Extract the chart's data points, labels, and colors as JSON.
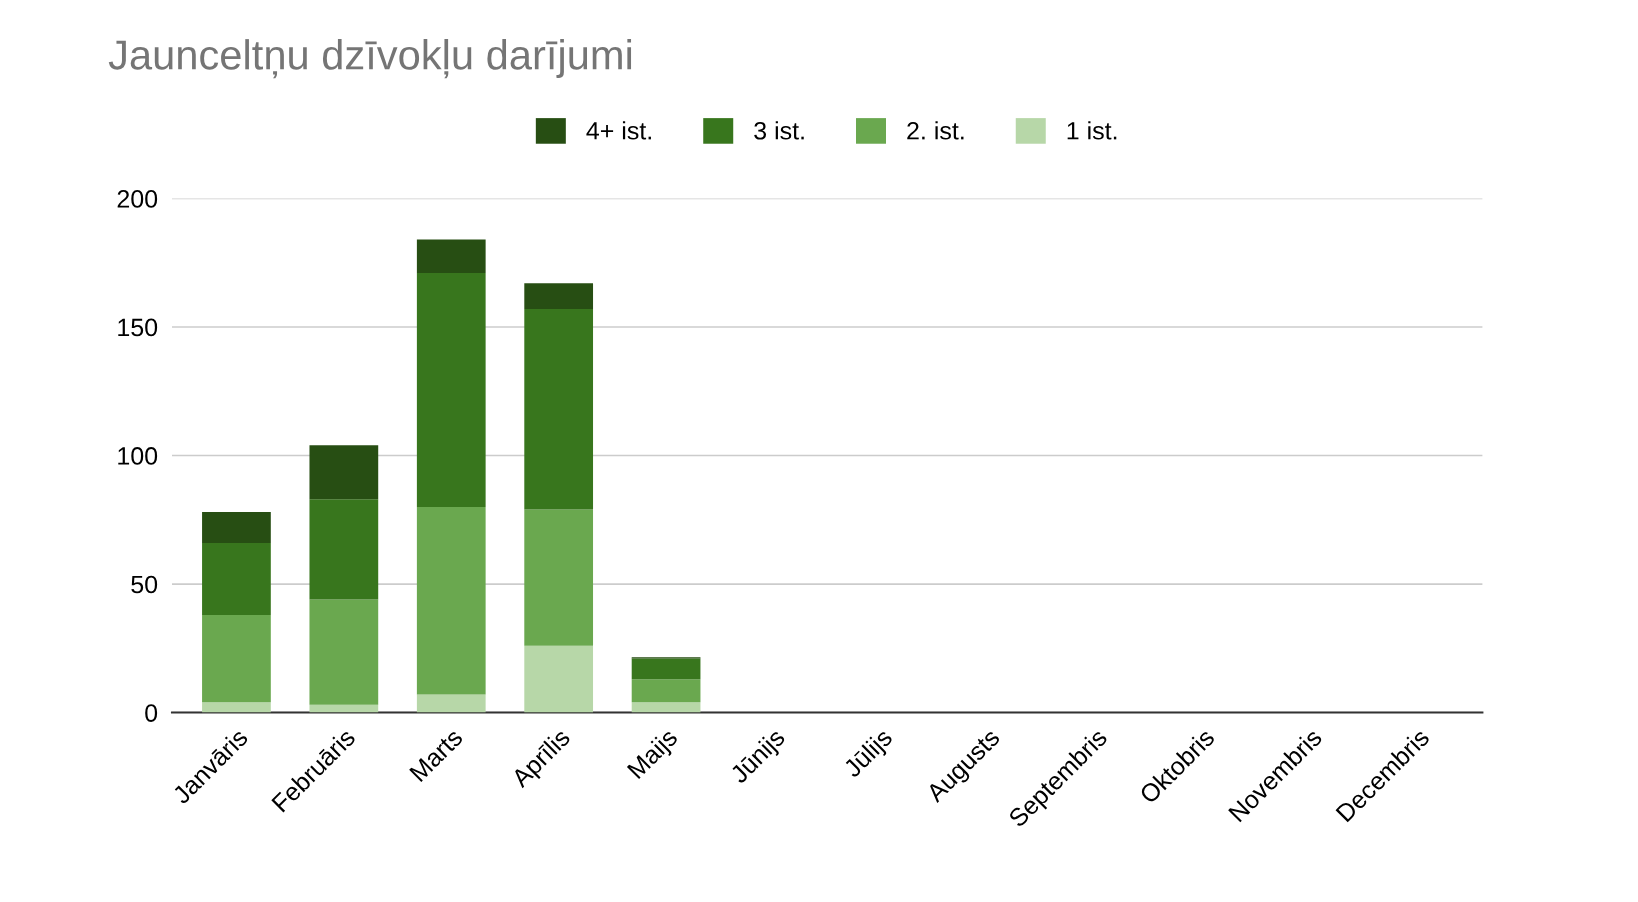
{
  "chart_data": {
    "type": "bar",
    "title": "Jaunceltņu dzīvokļu darījumi",
    "stacked": true,
    "grid": "y",
    "legend": "top",
    "categories": [
      "Janvāris",
      "Februāris",
      "Marts",
      "Aprīlis",
      "Maijs",
      "Jūnijs",
      "Jūlijs",
      "Augusts",
      "Septembris",
      "Oktobris",
      "Novembris",
      "Decembris"
    ],
    "ylim": [
      0,
      200
    ],
    "yticks": [
      0,
      50,
      100,
      150,
      200
    ],
    "series": [
      {
        "name": "1 ist.",
        "color": "#b7d7a8",
        "values": [
          4,
          3,
          7,
          26,
          4,
          null,
          null,
          null,
          null,
          null,
          null,
          null
        ]
      },
      {
        "name": "2. ist.",
        "color": "#6aa84f",
        "values": [
          34,
          41,
          73,
          53,
          9,
          null,
          null,
          null,
          null,
          null,
          null,
          null
        ]
      },
      {
        "name": "3 ist.",
        "color": "#38761d",
        "values": [
          28,
          39,
          91,
          78,
          8,
          null,
          null,
          null,
          null,
          null,
          null,
          null
        ]
      },
      {
        "name": "4+ ist.",
        "color": "#274e13",
        "values": [
          12,
          21,
          13,
          10,
          0.5,
          null,
          null,
          null,
          null,
          null,
          null,
          null
        ]
      }
    ]
  }
}
